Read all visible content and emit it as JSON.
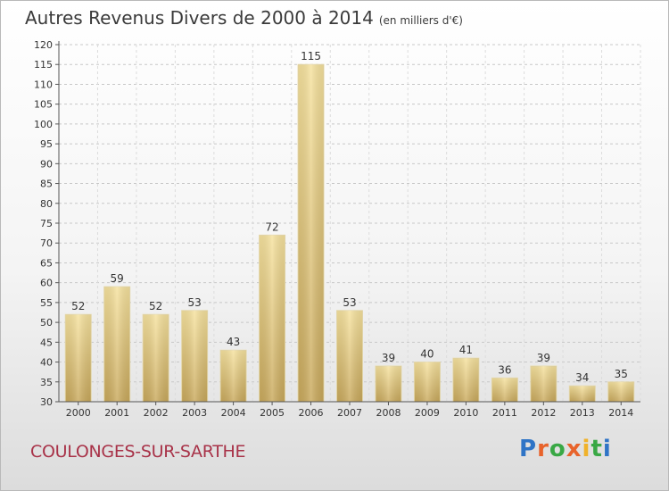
{
  "title": "Autres Revenus Divers de 2000 à 2014",
  "unit": "(en milliers d'€)",
  "city": "COULONGES-SUR-SARTHE",
  "logo": "Proxiti",
  "chart_data": {
    "type": "bar",
    "title": "Autres Revenus Divers de 2000 à 2014",
    "subtitle": "(en milliers d'€)",
    "categories": [
      "2000",
      "2001",
      "2002",
      "2003",
      "2004",
      "2005",
      "2006",
      "2007",
      "2008",
      "2009",
      "2010",
      "2011",
      "2012",
      "2013",
      "2014"
    ],
    "values": [
      52,
      59,
      52,
      53,
      43,
      72,
      115,
      53,
      39,
      40,
      41,
      36,
      39,
      34,
      35
    ],
    "ylim": [
      30,
      120
    ],
    "yticks": [
      30,
      35,
      40,
      45,
      50,
      55,
      60,
      65,
      70,
      75,
      80,
      85,
      90,
      95,
      100,
      105,
      110,
      115,
      120
    ],
    "grid": true,
    "legend": "none",
    "bar_color": "#e8cf8a"
  }
}
